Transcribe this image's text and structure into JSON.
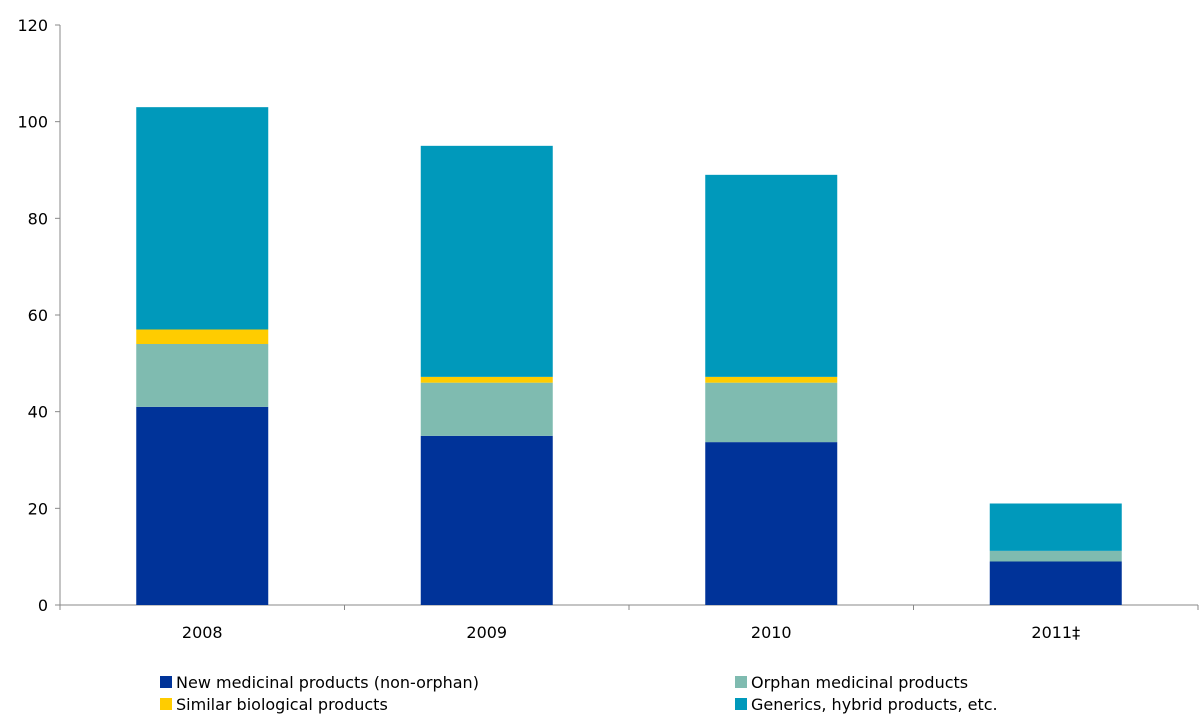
{
  "chart_data": {
    "type": "bar",
    "stacked": true,
    "categories": [
      "2008",
      "2009",
      "2010",
      "2011‡"
    ],
    "series": [
      {
        "name": "New medicinal products (non-orphan)",
        "color": "#003399",
        "values": [
          41,
          35,
          33.7,
          9
        ]
      },
      {
        "name": "Orphan medicinal products",
        "color": "#7fbbb0",
        "values": [
          13,
          11,
          12.3,
          2.2
        ]
      },
      {
        "name": "Similar biological products",
        "color": "#ffcc00",
        "values": [
          3,
          1.2,
          1.2,
          0
        ]
      },
      {
        "name": "Generics, hybrid products, etc.",
        "color": "#0099bb",
        "values": [
          46,
          47.8,
          41.8,
          9.8
        ]
      }
    ],
    "title": "",
    "xlabel": "",
    "ylabel": "",
    "ylim": [
      0,
      120
    ],
    "yticks": [
      "0",
      "20",
      "40",
      "60",
      "80",
      "100",
      "120"
    ],
    "grid": false,
    "legend_position": "bottom"
  }
}
